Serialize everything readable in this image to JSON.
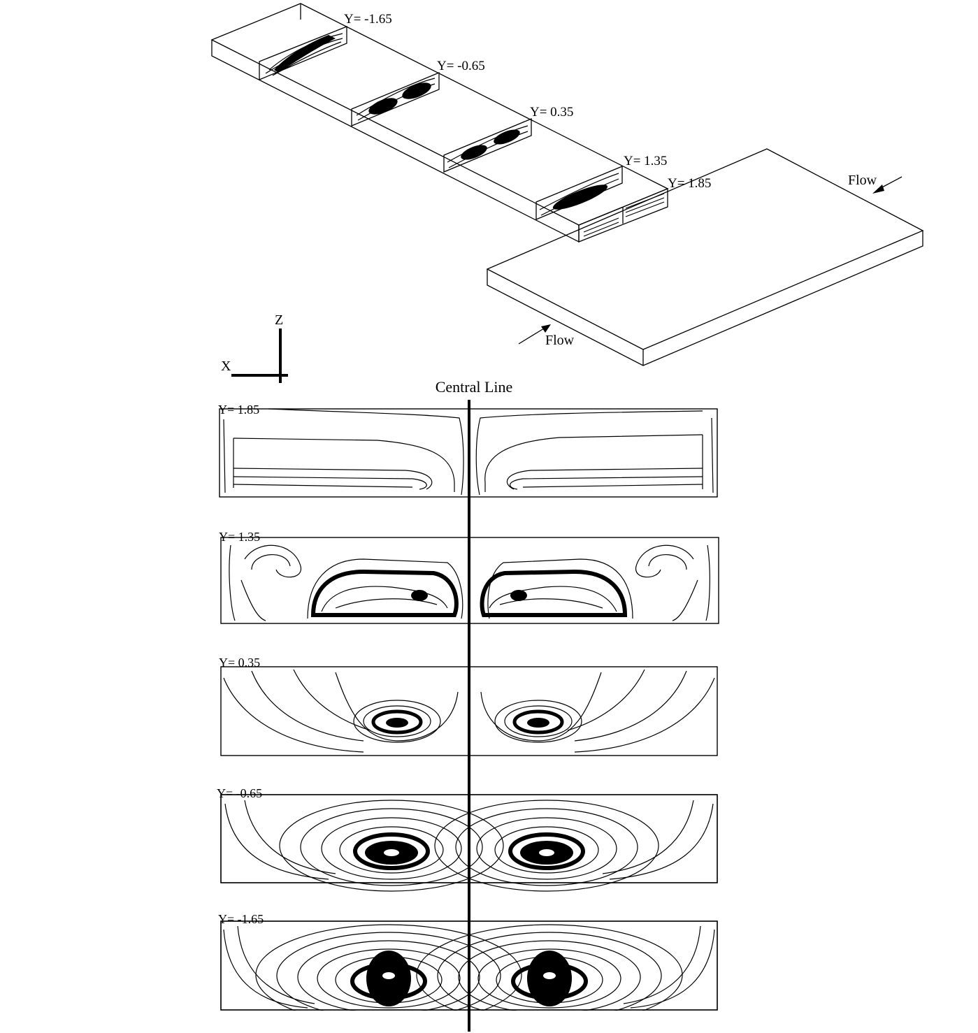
{
  "colors": {
    "ink": "#000000",
    "background": "#ffffff"
  },
  "isometric": {
    "section_labels": [
      "Y= -1.65",
      "Y= -0.65",
      "Y= 0.35",
      "Y= 1.35",
      "Y= 1.85"
    ],
    "flow_labels": [
      "Flow",
      "Flow"
    ],
    "axes": {
      "vertical": "Z",
      "horizontal": "X"
    }
  },
  "central_line_label": "Central Line",
  "panels": [
    {
      "label": "Y= 1.85"
    },
    {
      "label": "Y= 1.35"
    },
    {
      "label": "Y= 0.35"
    },
    {
      "label": "Y= -0.65"
    },
    {
      "label": "Y= -1.65"
    }
  ]
}
